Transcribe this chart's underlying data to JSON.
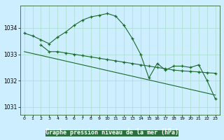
{
  "bg_color": "#cceeff",
  "plot_bg_color": "#cceeff",
  "grid_color": "#aaddcc",
  "line_color": "#1a6b2a",
  "title": "Graphe pression niveau de la mer (hPa)",
  "title_bg": "#2a7a3a",
  "title_color": "#ffffff",
  "xlim": [
    -0.5,
    23.5
  ],
  "ylim": [
    1030.7,
    1034.85
  ],
  "yticks": [
    1031,
    1032,
    1033,
    1034
  ],
  "xticks": [
    0,
    1,
    2,
    3,
    4,
    5,
    6,
    7,
    8,
    9,
    10,
    11,
    12,
    13,
    14,
    15,
    16,
    17,
    18,
    19,
    20,
    21,
    22,
    23
  ],
  "series1_x": [
    0,
    1,
    2,
    3,
    4,
    5,
    6,
    7,
    8,
    9,
    10,
    11,
    12,
    13,
    14,
    15,
    16,
    17,
    18,
    19,
    20,
    21,
    22,
    23
  ],
  "series1_y": [
    1033.8,
    1033.7,
    1033.55,
    1033.4,
    1033.65,
    1033.85,
    1034.1,
    1034.3,
    1034.42,
    1034.48,
    1034.55,
    1034.45,
    1034.1,
    1033.6,
    1033.0,
    1032.1,
    1032.65,
    1032.4,
    1032.55,
    1032.55,
    1032.5,
    1032.6,
    1032.0,
    1031.3
  ],
  "series2_x": [
    2,
    3,
    4,
    5,
    6,
    7,
    8,
    9,
    10,
    11,
    12,
    13,
    14,
    15,
    16,
    17,
    18,
    19,
    20,
    21,
    22,
    23
  ],
  "series2_y": [
    1033.35,
    1033.1,
    1033.1,
    1033.05,
    1033.0,
    1032.95,
    1032.9,
    1032.85,
    1032.8,
    1032.75,
    1032.7,
    1032.65,
    1032.6,
    1032.55,
    1032.5,
    1032.45,
    1032.4,
    1032.37,
    1032.35,
    1032.33,
    1032.3,
    1032.28
  ],
  "series3_x": [
    0,
    23
  ],
  "series3_y": [
    1033.1,
    1031.45
  ]
}
